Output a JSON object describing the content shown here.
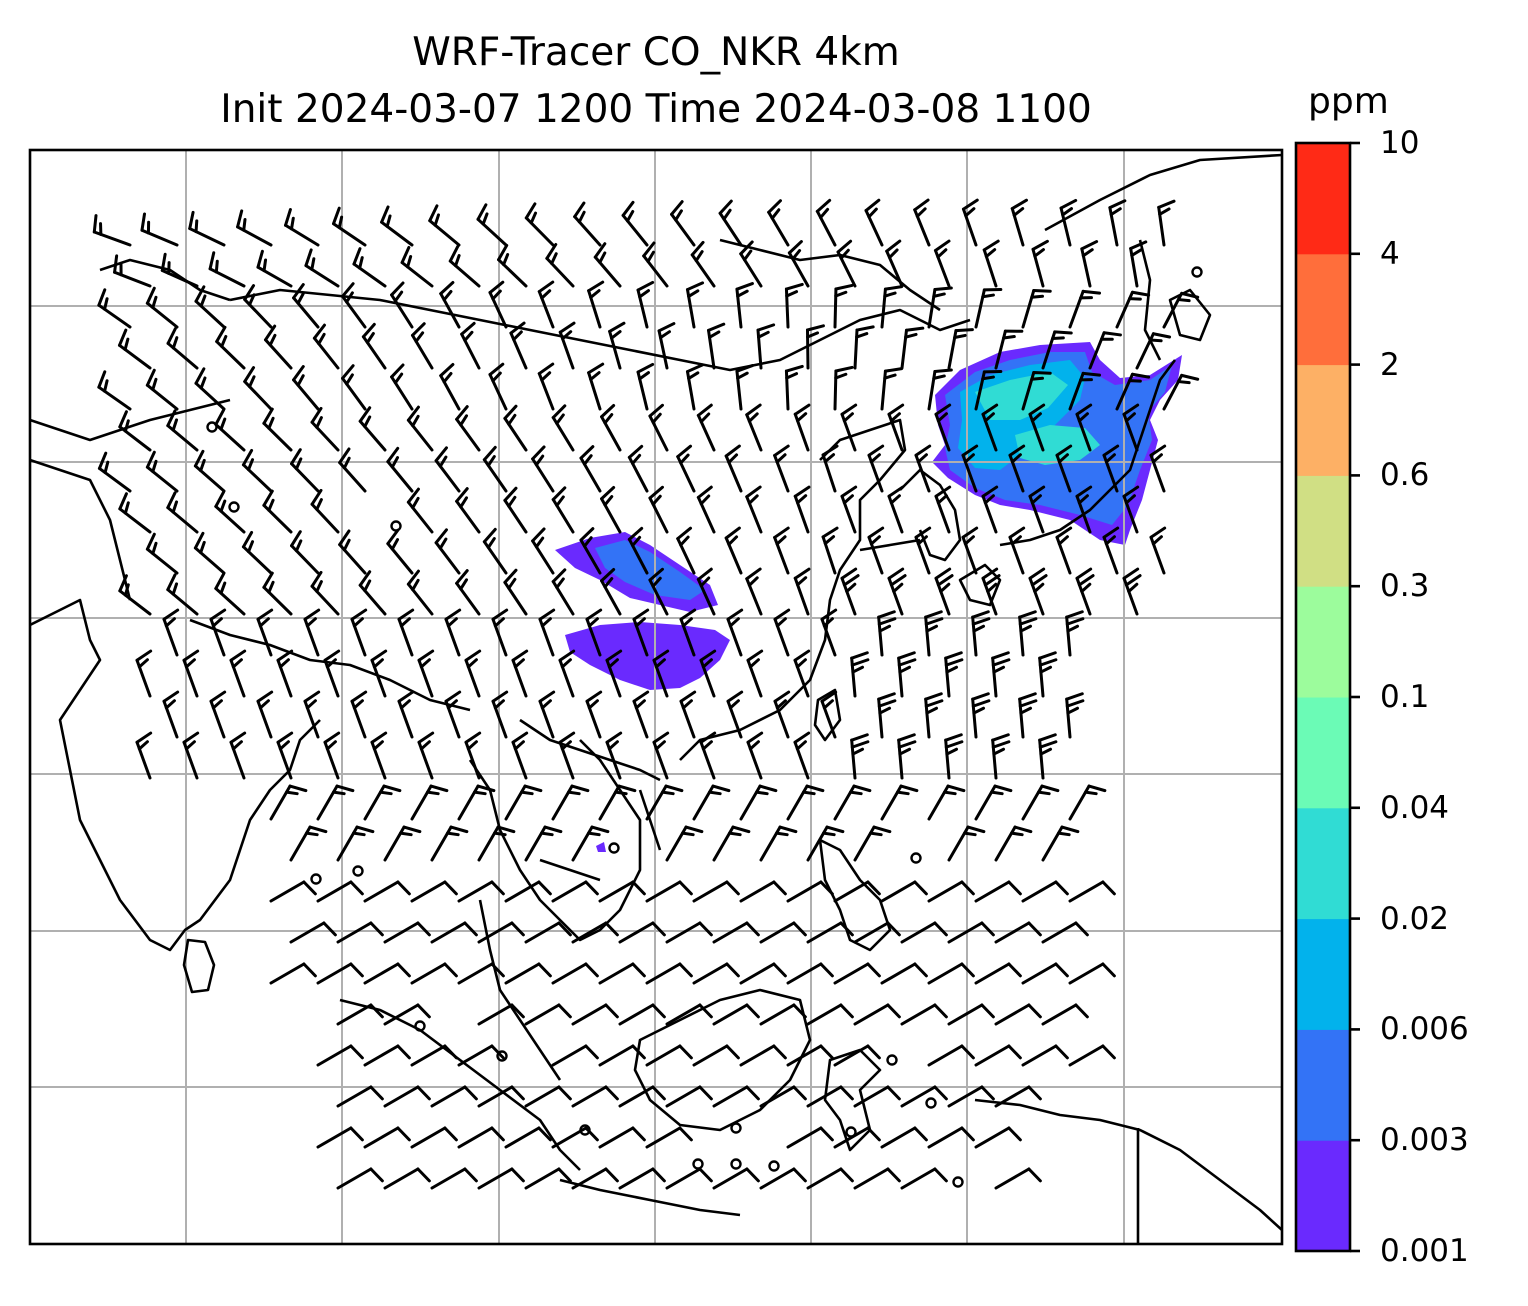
{
  "title": {
    "line1": "WRF-Tracer CO_NKR 4km",
    "line2": "Init 2024-03-07 1200 Time 2024-03-08 1100"
  },
  "colorbar": {
    "units": "ppm",
    "levels": [
      "0.001",
      "0.003",
      "0.006",
      "0.02",
      "0.04",
      "0.1",
      "0.3",
      "0.6",
      "2",
      "4",
      "10"
    ],
    "colors": [
      "#6a2afe",
      "#3373f6",
      "#02b2ec",
      "#30dcd4",
      "#6bfbb6",
      "#9cfc9c",
      "#d0df84",
      "#fdb065",
      "#ff6e3b",
      "#ff2a16"
    ]
  },
  "map": {
    "gridlines": true,
    "coastline_color": "#000000",
    "grid_color": "#b0b0b0",
    "wind_barbs_color": "#000000",
    "plumes": [
      {
        "region": "northeast-asia",
        "dominant_level": "0.006"
      },
      {
        "region": "central-china",
        "dominant_level": "0.003"
      }
    ]
  }
}
